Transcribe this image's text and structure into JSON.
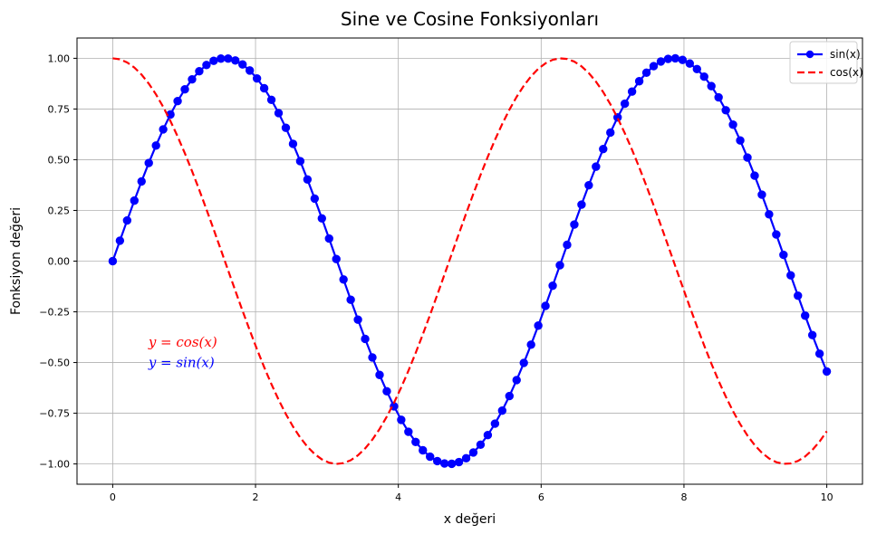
{
  "chart_data": {
    "type": "line",
    "title": "Sine ve Cosine Fonksiyonları",
    "xlabel": "x değeri",
    "ylabel": "Fonksiyon değeri",
    "xlim": [
      -0.5,
      10.5
    ],
    "ylim": [
      -1.1,
      1.1
    ],
    "xticks": [
      0,
      2,
      4,
      6,
      8,
      10
    ],
    "xtick_labels": [
      "0",
      "2",
      "4",
      "6",
      "8",
      "10"
    ],
    "yticks": [
      -1.0,
      -0.75,
      -0.5,
      -0.25,
      0.0,
      0.25,
      0.5,
      0.75,
      1.0
    ],
    "ytick_labels": [
      "−1.00",
      "−0.75",
      "−0.50",
      "−0.25",
      "0.00",
      "0.25",
      "0.50",
      "0.75",
      "1.00"
    ],
    "grid": true,
    "legend_position": "top-right",
    "x": {
      "start": 0,
      "end": 10,
      "count": 100
    },
    "series": [
      {
        "name": "sin(x)",
        "function": "sin",
        "color": "#0000ff",
        "style": "solid",
        "marker": "circle"
      },
      {
        "name": "cos(x)",
        "function": "cos",
        "color": "#ff0000",
        "style": "dashed",
        "marker": "none"
      }
    ],
    "annotations": [
      {
        "text": "y = cos(x)",
        "x": 0.5,
        "y": -0.4,
        "color": "#ff0000"
      },
      {
        "text": "y = sin(x)",
        "x": 0.5,
        "y": -0.5,
        "color": "#0000ff"
      }
    ]
  }
}
